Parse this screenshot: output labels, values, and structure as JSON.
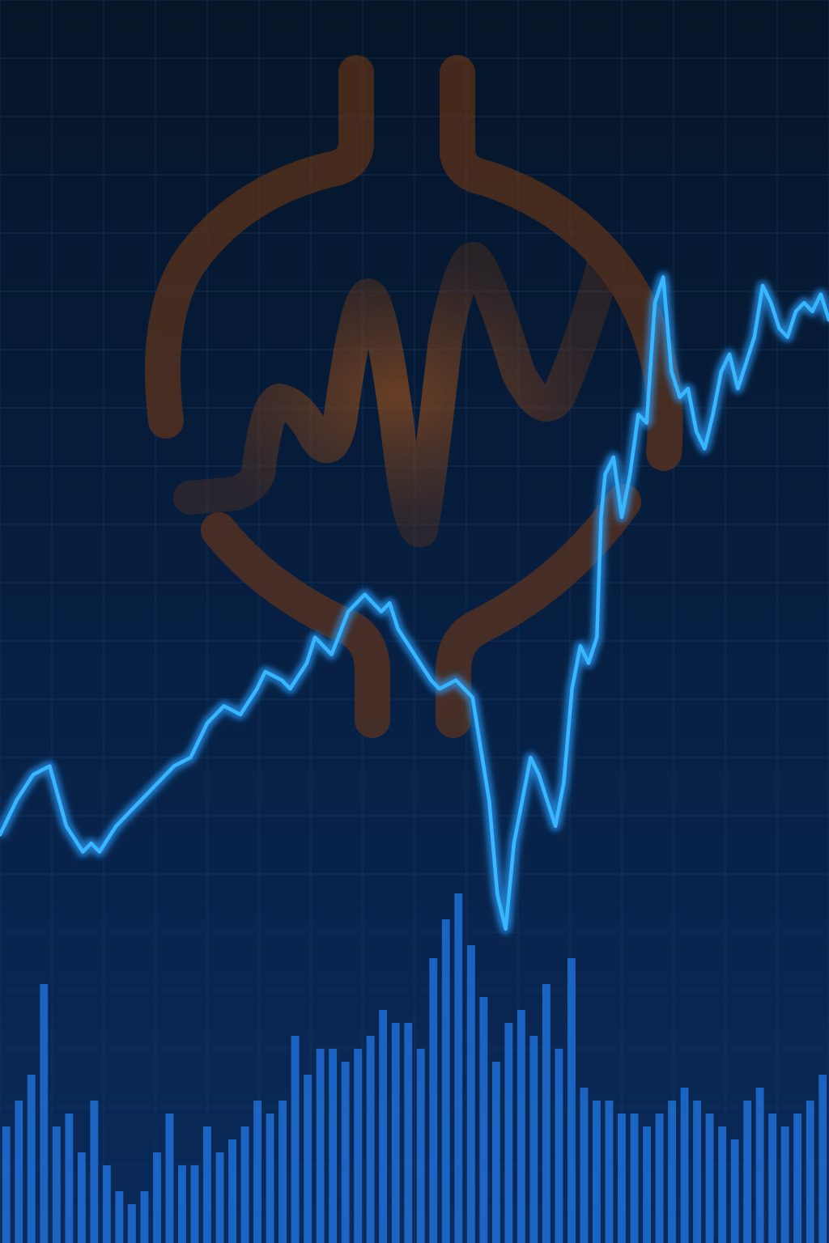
{
  "colors": {
    "background_top": "#061528",
    "background_bottom": "#0b2a5a",
    "grid": "#1c3a66",
    "line": "#39b6ff",
    "line_glow": "#1e8cff",
    "bar": "#1f6fd6",
    "logo": "#b2520d"
  },
  "logo": {
    "icon": "waveform-plug-icon"
  },
  "chart_data": {
    "type": "line",
    "grid": true,
    "legend": "none",
    "title": "",
    "xlabel": "",
    "ylabel": "",
    "xlim": [
      0,
      100
    ],
    "ylim": [
      0,
      100
    ],
    "series": [
      {
        "x": [
          0,
          2,
          4,
          6,
          8,
          10,
          11,
          12,
          14,
          16,
          17,
          19,
          21,
          23,
          25,
          27,
          29,
          31,
          32,
          34,
          35,
          37,
          38,
          40,
          42,
          44,
          46,
          47,
          48,
          50,
          52,
          53,
          55,
          57,
          58,
          59,
          60,
          61,
          62,
          64,
          65,
          66,
          67,
          68,
          69,
          70,
          71,
          72,
          72.5,
          73,
          74,
          75,
          76,
          77,
          78,
          79,
          80,
          81,
          82,
          83,
          84,
          85,
          86,
          87,
          88,
          89,
          90,
          91,
          92,
          93,
          94,
          95,
          96,
          97,
          98,
          99,
          100
        ],
        "y": [
          31,
          35,
          38,
          39,
          32,
          29,
          30,
          29,
          32,
          34,
          35,
          37,
          39,
          40,
          44,
          46,
          45,
          48,
          50,
          49,
          48,
          51,
          54,
          52,
          57,
          59,
          57,
          58,
          55,
          52,
          49,
          48,
          49,
          47,
          41,
          35,
          24,
          20,
          30,
          40,
          38,
          35,
          32,
          37,
          48,
          53,
          51,
          54,
          68,
          73,
          75,
          68,
          73,
          80,
          79,
          93,
          96,
          85,
          82,
          83,
          78,
          76,
          80,
          85,
          87,
          83,
          86,
          89,
          95,
          93,
          90,
          89,
          92,
          93,
          92,
          94,
          91
        ]
      }
    ],
    "bars": {
      "values": [
        9,
        11,
        13,
        20,
        9,
        10,
        7,
        11,
        6,
        4,
        3,
        4,
        7,
        10,
        6,
        6,
        9,
        7,
        8,
        9,
        11,
        10,
        11,
        16,
        13,
        15,
        15,
        14,
        15,
        16,
        18,
        17,
        17,
        15,
        22,
        25,
        27,
        23,
        19,
        14,
        17,
        18,
        16,
        20,
        15,
        22,
        12,
        11,
        11,
        10,
        10,
        9,
        10,
        11,
        12,
        11,
        10,
        9,
        8,
        11,
        12,
        10,
        9,
        10,
        11,
        13
      ]
    }
  }
}
